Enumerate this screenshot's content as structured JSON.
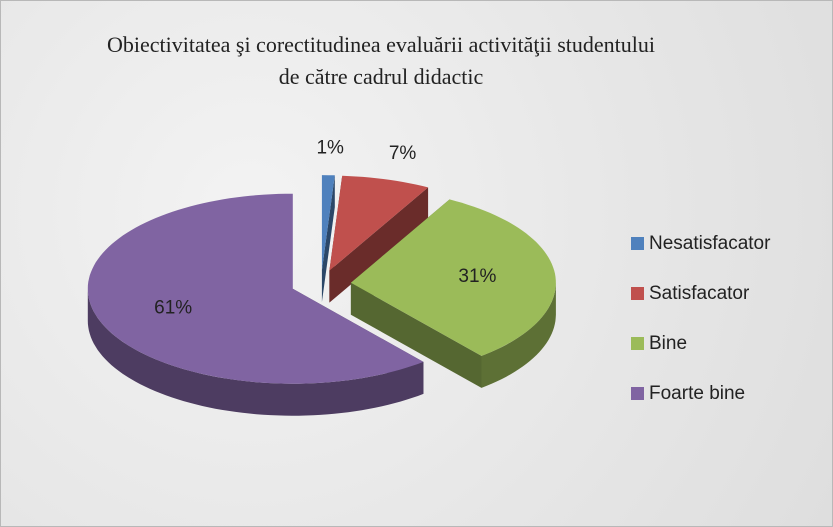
{
  "chart_data": {
    "type": "pie",
    "title": "Obiectivitatea şi corectitudinea evaluării activităţii studentului de către cadrul didactic",
    "categories": [
      "Nesatisfacator",
      "Satisfacator",
      "Bine",
      "Foarte bine"
    ],
    "values": [
      1,
      7,
      31,
      61
    ],
    "value_labels": [
      "1%",
      "7%",
      "31%",
      "61%"
    ],
    "colors": [
      "#4f81bd",
      "#c0504d",
      "#9bbb59",
      "#8064a2"
    ],
    "legend": "right"
  }
}
